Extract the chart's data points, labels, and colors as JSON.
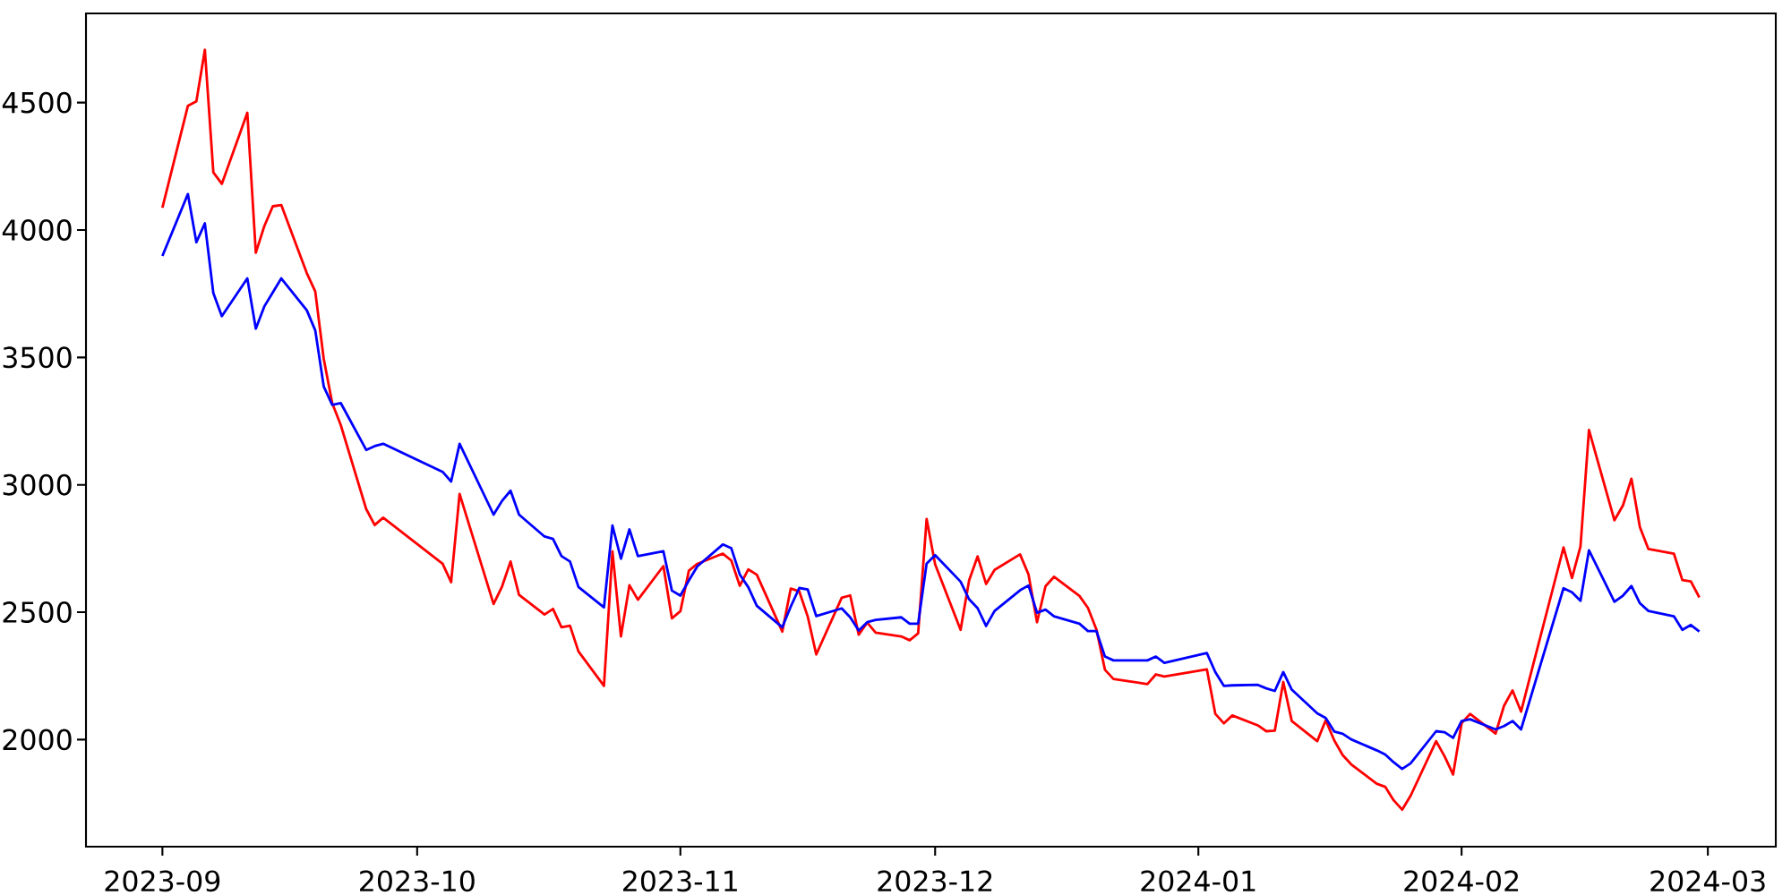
{
  "chart_data": {
    "type": "line",
    "x": [
      "2023-09-01",
      "2023-09-04",
      "2023-09-05",
      "2023-09-06",
      "2023-09-07",
      "2023-09-08",
      "2023-09-11",
      "2023-09-12",
      "2023-09-13",
      "2023-09-14",
      "2023-09-15",
      "2023-09-18",
      "2023-09-19",
      "2023-09-20",
      "2023-09-21",
      "2023-09-22",
      "2023-09-25",
      "2023-09-26",
      "2023-09-27",
      "2023-10-04",
      "2023-10-05",
      "2023-10-06",
      "2023-10-10",
      "2023-10-11",
      "2023-10-12",
      "2023-10-13",
      "2023-10-16",
      "2023-10-17",
      "2023-10-18",
      "2023-10-19",
      "2023-10-20",
      "2023-10-23",
      "2023-10-24",
      "2023-10-25",
      "2023-10-26",
      "2023-10-27",
      "2023-10-30",
      "2023-10-31",
      "2023-11-01",
      "2023-11-02",
      "2023-11-03",
      "2023-11-06",
      "2023-11-07",
      "2023-11-08",
      "2023-11-09",
      "2023-11-10",
      "2023-11-13",
      "2023-11-14",
      "2023-11-15",
      "2023-11-16",
      "2023-11-17",
      "2023-11-20",
      "2023-11-21",
      "2023-11-22",
      "2023-11-23",
      "2023-11-24",
      "2023-11-27",
      "2023-11-28",
      "2023-11-29",
      "2023-11-30",
      "2023-12-01",
      "2023-12-04",
      "2023-12-05",
      "2023-12-06",
      "2023-12-07",
      "2023-12-08",
      "2023-12-11",
      "2023-12-12",
      "2023-12-13",
      "2023-12-14",
      "2023-12-15",
      "2023-12-18",
      "2023-12-19",
      "2023-12-20",
      "2023-12-21",
      "2023-12-22",
      "2023-12-26",
      "2023-12-27",
      "2023-12-28",
      "2024-01-02",
      "2024-01-03",
      "2024-01-04",
      "2024-01-05",
      "2024-01-08",
      "2024-01-09",
      "2024-01-10",
      "2024-01-11",
      "2024-01-12",
      "2024-01-15",
      "2024-01-16",
      "2024-01-17",
      "2024-01-18",
      "2024-01-19",
      "2024-01-22",
      "2024-01-23",
      "2024-01-24",
      "2024-01-25",
      "2024-01-26",
      "2024-01-29",
      "2024-01-30",
      "2024-01-31",
      "2024-02-01",
      "2024-02-02",
      "2024-02-05",
      "2024-02-06",
      "2024-02-07",
      "2024-02-08",
      "2024-02-13",
      "2024-02-14",
      "2024-02-15",
      "2024-02-16",
      "2024-02-19",
      "2024-02-20",
      "2024-02-21",
      "2024-02-22",
      "2024-02-23",
      "2024-02-26",
      "2024-02-27",
      "2024-02-28",
      "2024-02-29"
    ],
    "series": [
      {
        "color": "#ff0000",
        "values": [
          4087,
          4487,
          4505,
          4707,
          4226,
          4181,
          4460,
          3911,
          4015,
          4093,
          4098,
          3831,
          3759,
          3494,
          3320,
          3235,
          2905,
          2842,
          2871,
          2690,
          2618,
          2964,
          2532,
          2601,
          2699,
          2568,
          2491,
          2513,
          2441,
          2447,
          2346,
          2211,
          2738,
          2405,
          2606,
          2549,
          2681,
          2476,
          2504,
          2663,
          2690,
          2730,
          2703,
          2604,
          2668,
          2647,
          2424,
          2593,
          2582,
          2483,
          2334,
          2557,
          2566,
          2412,
          2459,
          2420,
          2405,
          2390,
          2417,
          2866,
          2688,
          2431,
          2625,
          2719,
          2611,
          2666,
          2727,
          2648,
          2461,
          2602,
          2639,
          2564,
          2517,
          2432,
          2274,
          2238,
          2218,
          2256,
          2248,
          2276,
          2101,
          2064,
          2095,
          2056,
          2033,
          2035,
          2226,
          2073,
          1994,
          2076,
          1997,
          1939,
          1903,
          1827,
          1815,
          1762,
          1725,
          1780,
          1994,
          1934,
          1863,
          2064,
          2101,
          2024,
          2133,
          2193,
          2110,
          2754,
          2634,
          2758,
          3215,
          2861,
          2919,
          3024,
          2834,
          2748,
          2730,
          2626,
          2621,
          2558
        ]
      },
      {
        "color": "#0000ff",
        "values": [
          3898,
          4141,
          3952,
          4026,
          3752,
          3662,
          3810,
          3613,
          3700,
          3755,
          3810,
          3685,
          3606,
          3386,
          3314,
          3321,
          3137,
          3152,
          3161,
          3051,
          3013,
          3161,
          2883,
          2937,
          2977,
          2883,
          2797,
          2788,
          2720,
          2699,
          2599,
          2519,
          2840,
          2710,
          2825,
          2720,
          2739,
          2585,
          2565,
          2625,
          2680,
          2766,
          2751,
          2648,
          2598,
          2525,
          2441,
          2522,
          2595,
          2589,
          2485,
          2515,
          2480,
          2428,
          2461,
          2470,
          2480,
          2455,
          2455,
          2691,
          2724,
          2620,
          2551,
          2516,
          2446,
          2505,
          2586,
          2605,
          2498,
          2510,
          2484,
          2455,
          2426,
          2426,
          2326,
          2311,
          2311,
          2326,
          2301,
          2340,
          2265,
          2211,
          2213,
          2215,
          2201,
          2191,
          2265,
          2196,
          2103,
          2085,
          2032,
          2023,
          2001,
          1958,
          1942,
          1911,
          1885,
          1907,
          2033,
          2029,
          2007,
          2073,
          2080,
          2040,
          2053,
          2073,
          2040,
          2594,
          2578,
          2545,
          2743,
          2541,
          2565,
          2603,
          2535,
          2505,
          2484,
          2431,
          2450,
          2424
        ]
      }
    ],
    "xlim": [
      "2023-08-23",
      "2024-03-09"
    ],
    "ylim": [
      1580,
      4850
    ],
    "xticks": [
      "2023-09",
      "2023-10",
      "2023-11",
      "2023-12",
      "2024-01",
      "2024-02",
      "2024-03"
    ],
    "yticks": [
      2000,
      2500,
      3000,
      3500,
      4000,
      4500
    ]
  }
}
